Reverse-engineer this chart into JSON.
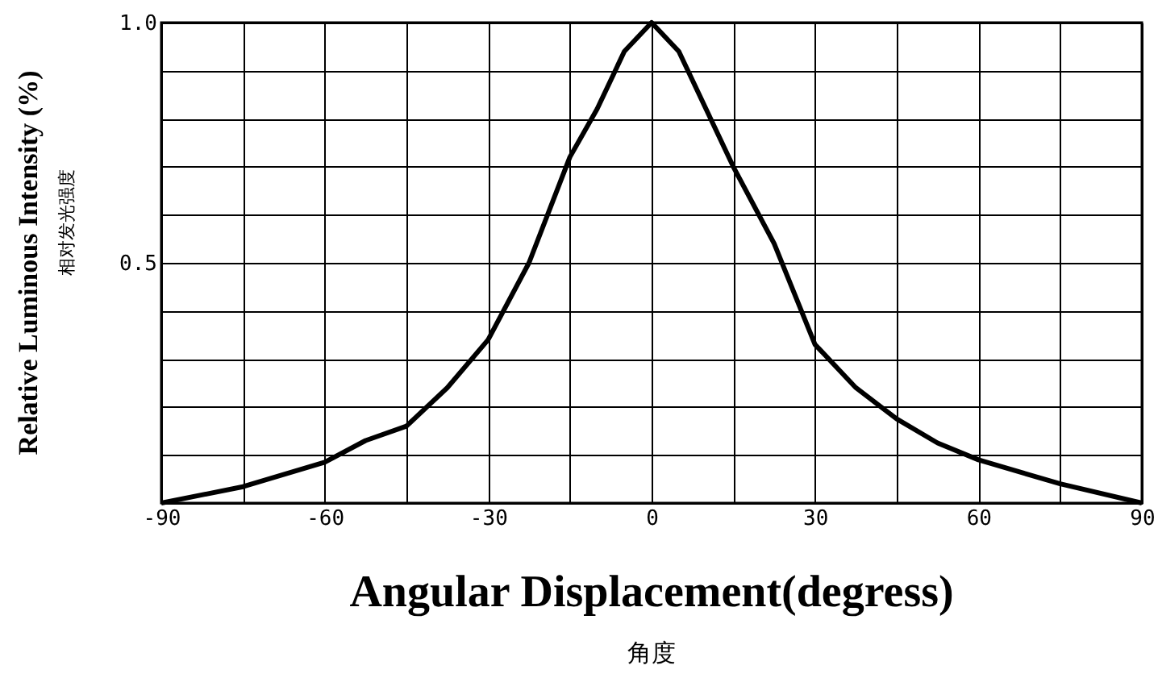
{
  "chart_data": {
    "type": "line",
    "xlabel": "Angular Displacement(degress)",
    "ylabel": "Relative Luminous Intensity (%)",
    "annotations": [
      "相对发光强度",
      "角度"
    ],
    "x": [
      -90,
      -75,
      -60,
      -52.5,
      -45,
      -37.5,
      -30,
      -22.5,
      -15,
      -10,
      -5,
      0,
      5,
      10,
      15,
      22.5,
      30,
      37.5,
      45,
      52.5,
      60,
      75,
      90
    ],
    "series": [
      {
        "color": "#000000",
        "values": [
          0,
          0.034,
          0.085,
          0.13,
          0.16,
          0.24,
          0.34,
          0.5,
          0.72,
          0.82,
          0.94,
          1.0,
          0.94,
          0.82,
          0.7,
          0.54,
          0.33,
          0.24,
          0.175,
          0.125,
          0.09,
          0.04,
          0
        ]
      }
    ],
    "xlim": [
      -90,
      90
    ],
    "ylim": [
      0,
      1
    ],
    "xticks": [
      -90,
      {
        "value": -75,
        "label": null
      },
      -60,
      {
        "value": -45,
        "label": null
      },
      -30,
      {
        "value": -15,
        "label": null
      },
      0,
      {
        "value": 15,
        "label": null
      },
      30,
      {
        "value": 45,
        "label": null
      },
      60,
      {
        "value": 75,
        "label": null
      },
      90
    ],
    "yticks": [
      {
        "value": 0,
        "label": null
      },
      {
        "value": 0.1,
        "label": null
      },
      {
        "value": 0.2,
        "label": null
      },
      {
        "value": 0.3,
        "label": null
      },
      {
        "value": 0.4,
        "label": null
      },
      {
        "value": 0.5,
        "label": "0.5"
      },
      {
        "value": 0.6,
        "label": null
      },
      {
        "value": 0.7,
        "label": null
      },
      {
        "value": 0.8,
        "label": null
      },
      {
        "value": 0.9,
        "label": null
      },
      {
        "value": 1.0,
        "label": "1.0"
      }
    ],
    "grid": true,
    "marker": "none",
    "line_style": "solid"
  }
}
